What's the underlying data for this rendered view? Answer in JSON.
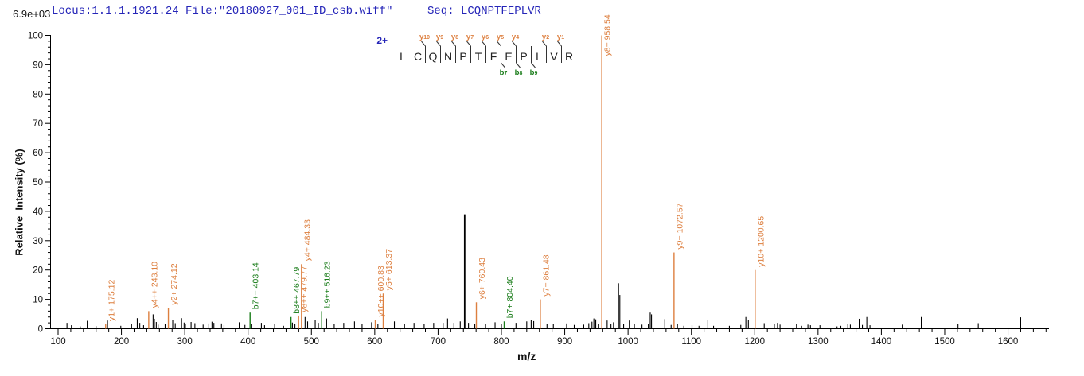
{
  "header": {
    "locus_file": "Locus:1.1.1.1921.24 File:\"20180927_001_ID_csb.wiff\"",
    "seq": "Seq: LCQNPTFEPLVR"
  },
  "chart_data": {
    "type": "bar",
    "subtype": "ms2-fragmentation-spectrum",
    "title": "Locus:1.1.1.1921.24 File:\"20180927_001_ID_csb.wiff\"  Seq: LCQNPTFEPLVR",
    "xlabel": "m/z",
    "ylabel": "Relative  Intensity (%)",
    "intensity_scale": "6.9e+03",
    "xlim": [
      100,
      1665
    ],
    "ylim": [
      0,
      100
    ],
    "x_major_ticks": [
      100,
      200,
      300,
      400,
      500,
      600,
      700,
      800,
      900,
      1000,
      1100,
      1200,
      1300,
      1400,
      1500,
      1600
    ],
    "x_minor_step": 20,
    "y_major_step": 10,
    "y_minor_step": 2,
    "grid": false,
    "legend": "none",
    "colors": {
      "y_series": "#DD7F3F",
      "b_series": "#1B7D1B",
      "unlabeled": "#000000",
      "header_text": "#2525B8",
      "charge_text": "#2525B8"
    },
    "sequence_annotation": {
      "charge_label": "2+",
      "residues": [
        "L",
        "C",
        "Q",
        "N",
        "P",
        "T",
        "F",
        "E",
        "P",
        "L",
        "V",
        "R"
      ],
      "fragmentation": [
        {
          "gap": 2,
          "y": "y",
          "ynum": "10"
        },
        {
          "gap": 3,
          "y": "y",
          "ynum": "9"
        },
        {
          "gap": 4,
          "y": "y",
          "ynum": "8"
        },
        {
          "gap": 5,
          "y": "y",
          "ynum": "7"
        },
        {
          "gap": 6,
          "y": "y",
          "ynum": "6"
        },
        {
          "gap": 7,
          "y": "y",
          "ynum": "5",
          "b": "b",
          "bnum": "7"
        },
        {
          "gap": 8,
          "y": "y",
          "ynum": "4",
          "b": "b",
          "bnum": "8"
        },
        {
          "gap": 9,
          "b": "b",
          "bnum": "9"
        },
        {
          "gap": 10,
          "y": "y",
          "ynum": "2"
        },
        {
          "gap": 11,
          "y": "y",
          "ynum": "1"
        }
      ]
    },
    "labeled_peaks": [
      {
        "ion": "y1+",
        "mz": 175.12,
        "pct": 1.5,
        "series": "y"
      },
      {
        "ion": "y4++",
        "mz": 243.1,
        "pct": 6.0,
        "series": "y"
      },
      {
        "ion": "y2+",
        "mz": 274.12,
        "pct": 7.0,
        "series": "y"
      },
      {
        "ion": "b7++",
        "mz": 403.14,
        "pct": 5.5,
        "series": "b"
      },
      {
        "ion": "b8++",
        "mz": 467.79,
        "pct": 4.0,
        "series": "b"
      },
      {
        "ion": "y8++",
        "mz": 479.77,
        "pct": 4.5,
        "series": "y"
      },
      {
        "ion": "y4+",
        "mz": 484.33,
        "pct": 22.0,
        "series": "y"
      },
      {
        "ion": "b9++",
        "mz": 516.23,
        "pct": 6.0,
        "series": "b"
      },
      {
        "ion": "y10++",
        "mz": 600.83,
        "pct": 3.0,
        "series": "y"
      },
      {
        "ion": "y5+",
        "mz": 613.37,
        "pct": 12.0,
        "series": "y"
      },
      {
        "ion": "y6+",
        "mz": 760.43,
        "pct": 9.0,
        "series": "y"
      },
      {
        "ion": "b7+",
        "mz": 804.4,
        "pct": 2.5,
        "series": "b"
      },
      {
        "ion": "y7+",
        "mz": 861.48,
        "pct": 10.0,
        "series": "y"
      },
      {
        "ion": "y8+",
        "mz": 958.54,
        "pct": 100.0,
        "series": "y"
      },
      {
        "ion": "y9+",
        "mz": 1072.57,
        "pct": 26.0,
        "series": "y"
      },
      {
        "ion": "y10+",
        "mz": 1200.65,
        "pct": 20.0,
        "series": "y"
      }
    ],
    "unlabeled_peaks": [
      [
        114,
        2.0
      ],
      [
        121,
        1.2
      ],
      [
        135,
        0.8
      ],
      [
        146,
        2.7
      ],
      [
        160,
        0.9
      ],
      [
        178,
        2.8
      ],
      [
        199,
        1.0
      ],
      [
        216,
        1.6
      ],
      [
        225,
        3.6
      ],
      [
        229,
        2.0
      ],
      [
        235,
        1.2
      ],
      [
        250,
        4.9
      ],
      [
        252,
        3.4
      ],
      [
        255,
        2.3
      ],
      [
        258,
        1.4
      ],
      [
        269,
        1.6
      ],
      [
        281,
        3.0
      ],
      [
        285,
        1.9
      ],
      [
        295,
        3.6
      ],
      [
        299,
        2.1
      ],
      [
        301,
        1.5
      ],
      [
        310,
        2.3
      ],
      [
        316,
        1.9
      ],
      [
        329,
        1.4
      ],
      [
        338,
        1.8
      ],
      [
        343,
        2.4
      ],
      [
        346,
        2.0
      ],
      [
        358,
        1.8
      ],
      [
        362,
        1.2
      ],
      [
        386,
        2.2
      ],
      [
        395,
        1.3
      ],
      [
        405,
        1.5
      ],
      [
        421,
        2.0
      ],
      [
        426,
        1.2
      ],
      [
        442,
        1.5
      ],
      [
        456,
        1.0
      ],
      [
        470,
        2.1
      ],
      [
        474,
        1.5
      ],
      [
        490,
        4.0
      ],
      [
        494,
        2.5
      ],
      [
        506,
        3.0
      ],
      [
        511,
        2.0
      ],
      [
        524,
        3.5
      ],
      [
        536,
        1.5
      ],
      [
        551,
        2.0
      ],
      [
        568,
        2.5
      ],
      [
        580,
        1.5
      ],
      [
        595,
        2.2
      ],
      [
        605,
        1.5
      ],
      [
        631,
        2.5
      ],
      [
        647,
        1.5
      ],
      [
        662,
        2.0
      ],
      [
        678,
        1.5
      ],
      [
        693,
        2.0
      ],
      [
        708,
        2.0
      ],
      [
        715,
        3.5
      ],
      [
        725,
        2.0
      ],
      [
        735,
        2.5
      ],
      [
        742,
        39.0
      ],
      [
        748,
        2.0
      ],
      [
        758,
        1.5
      ],
      [
        775,
        1.5
      ],
      [
        790,
        2.2
      ],
      [
        800,
        1.5
      ],
      [
        823,
        2.0
      ],
      [
        840,
        2.5
      ],
      [
        847,
        3.0
      ],
      [
        851,
        2.6
      ],
      [
        872,
        1.5
      ],
      [
        882,
        1.6
      ],
      [
        903,
        1.8
      ],
      [
        915,
        1.3
      ],
      [
        930,
        1.4
      ],
      [
        938,
        1.9
      ],
      [
        943,
        2.4
      ],
      [
        946,
        3.5
      ],
      [
        949,
        3.2
      ],
      [
        953,
        1.7
      ],
      [
        967,
        2.8
      ],
      [
        973,
        1.5
      ],
      [
        977,
        2.2
      ],
      [
        985,
        15.5
      ],
      [
        987,
        11.5
      ],
      [
        993,
        1.7
      ],
      [
        1002,
        2.8
      ],
      [
        1010,
        1.7
      ],
      [
        1022,
        1.4
      ],
      [
        1032,
        1.5
      ],
      [
        1035,
        5.5
      ],
      [
        1037,
        4.9
      ],
      [
        1058,
        3.3
      ],
      [
        1068,
        1.3
      ],
      [
        1078,
        1.5
      ],
      [
        1088,
        1.0
      ],
      [
        1101,
        1.2
      ],
      [
        1112,
        1.0
      ],
      [
        1126,
        3.0
      ],
      [
        1135,
        1.0
      ],
      [
        1160,
        1.0
      ],
      [
        1178,
        1.3
      ],
      [
        1186,
        4.0
      ],
      [
        1190,
        3.0
      ],
      [
        1215,
        1.9
      ],
      [
        1231,
        1.5
      ],
      [
        1236,
        2.0
      ],
      [
        1240,
        1.4
      ],
      [
        1266,
        1.6
      ],
      [
        1274,
        1.0
      ],
      [
        1284,
        1.4
      ],
      [
        1288,
        1.2
      ],
      [
        1303,
        1.2
      ],
      [
        1330,
        0.8
      ],
      [
        1336,
        1.0
      ],
      [
        1347,
        1.5
      ],
      [
        1351,
        1.4
      ],
      [
        1365,
        3.4
      ],
      [
        1370,
        1.3
      ],
      [
        1377,
        4.0
      ],
      [
        1382,
        1.2
      ],
      [
        1433,
        1.4
      ],
      [
        1463,
        4.0
      ],
      [
        1521,
        1.6
      ],
      [
        1553,
        1.9
      ],
      [
        1620,
        3.9
      ]
    ]
  }
}
